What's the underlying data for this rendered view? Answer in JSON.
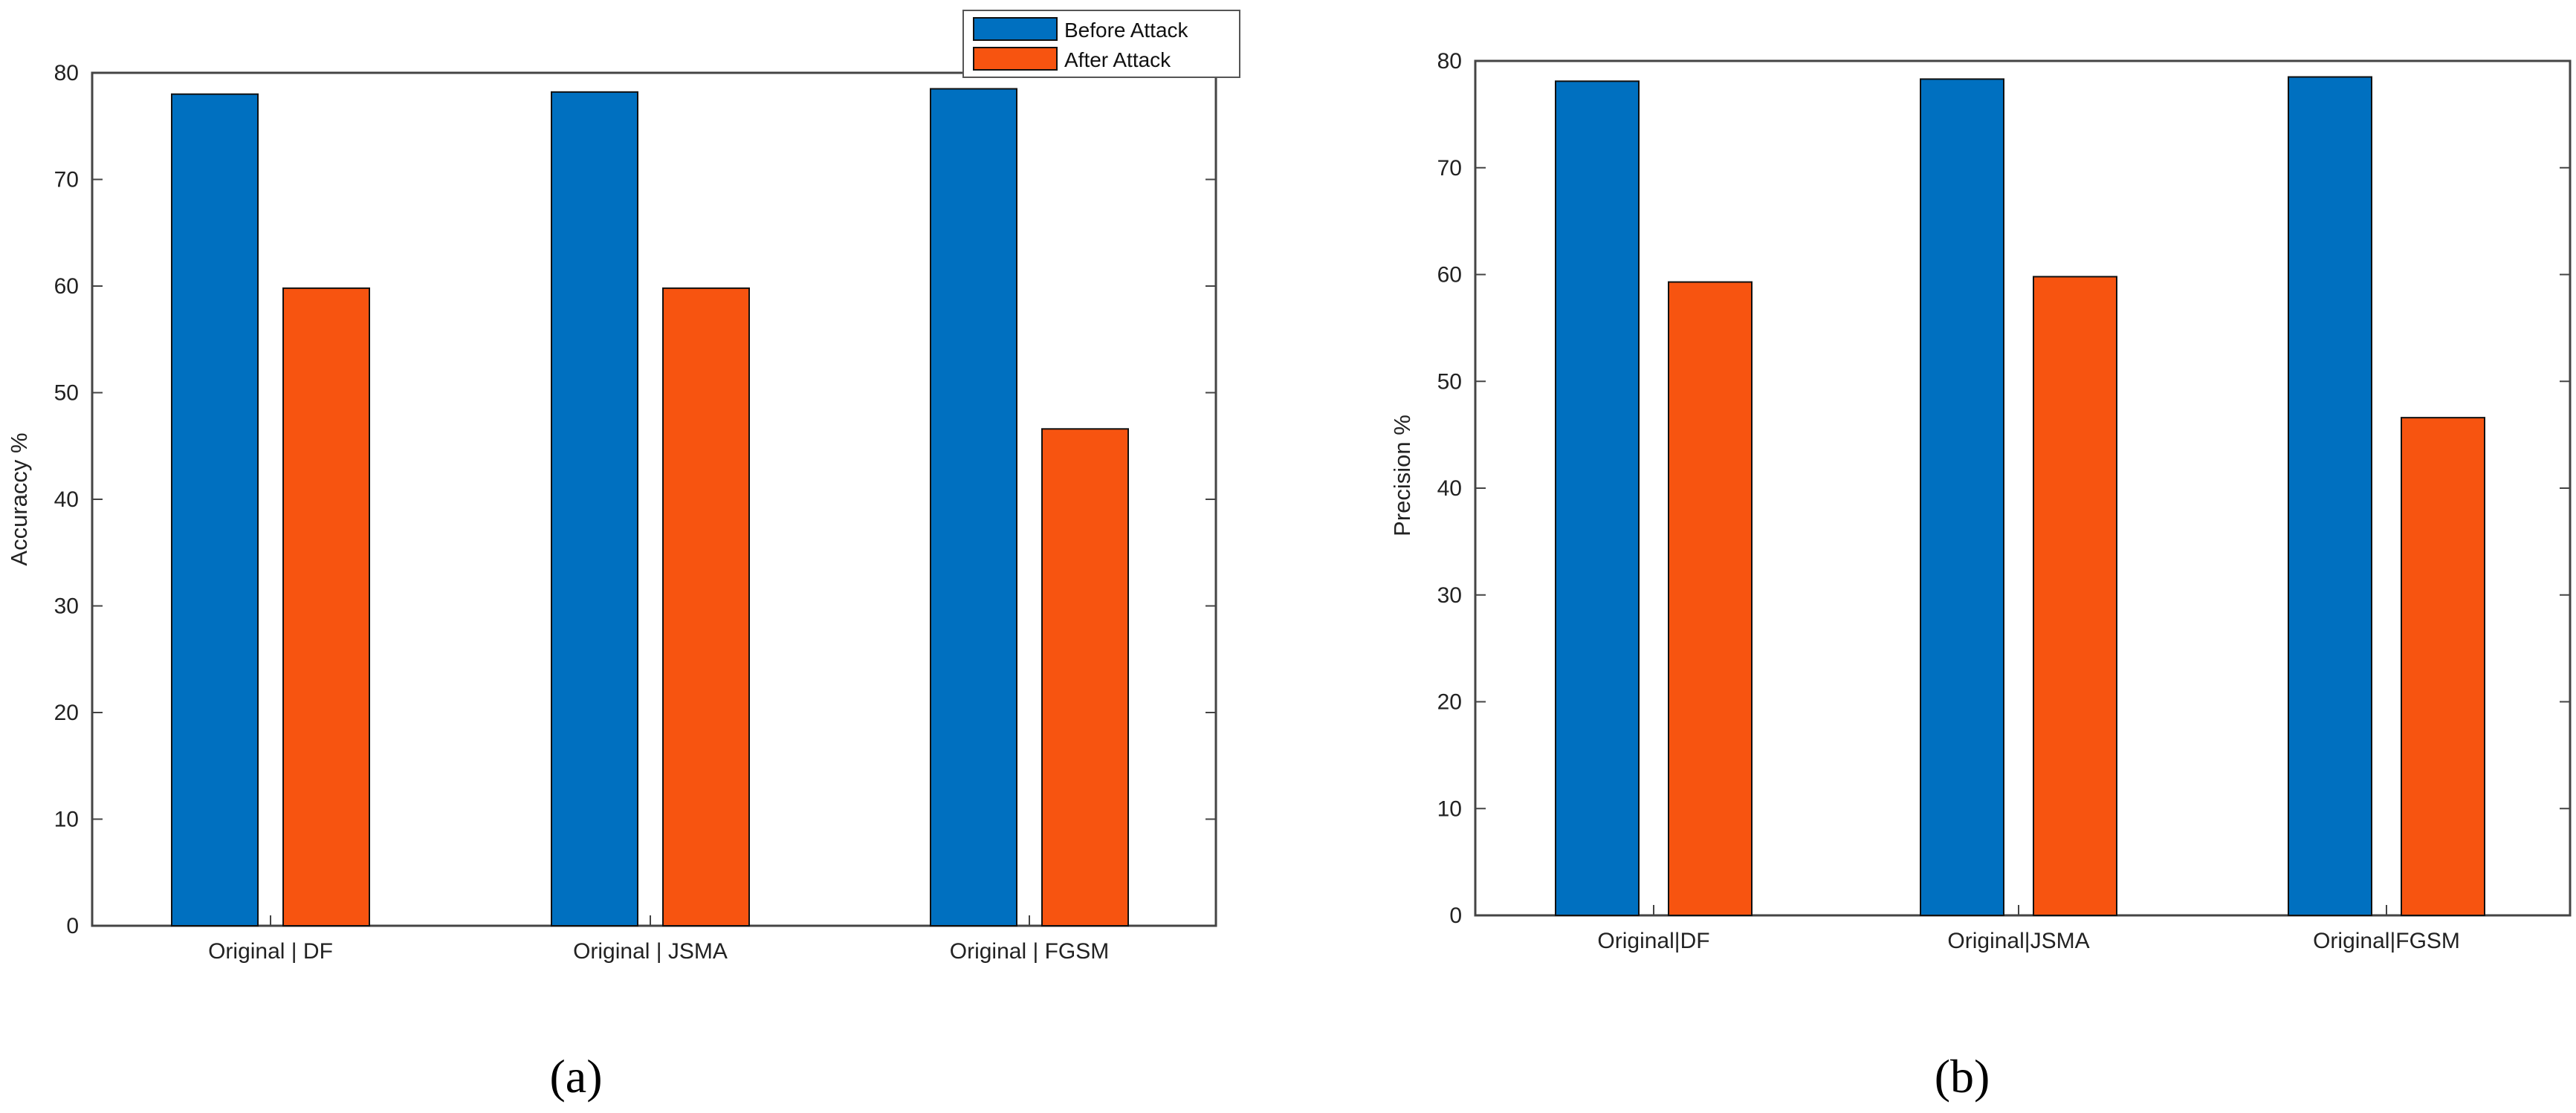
{
  "chart_data": [
    {
      "type": "bar",
      "panel_label": "(a)",
      "categories": [
        "Original | DF",
        "Original | JSMA",
        "Original | FGSM"
      ],
      "series": [
        {
          "name": "Before Attack",
          "values": [
            78,
            78.2,
            78.5
          ]
        },
        {
          "name": "After Attack",
          "values": [
            59.8,
            59.8,
            46.6
          ]
        }
      ],
      "title": "",
      "xlabel": "",
      "ylabel": "Accuraccy %",
      "ylim": [
        0,
        80
      ],
      "yticks": [
        0,
        10,
        20,
        30,
        40,
        50,
        60,
        70,
        80
      ],
      "grid": false,
      "legend": "top-right"
    },
    {
      "type": "bar",
      "panel_label": "(b)",
      "categories": [
        "Original|DF",
        "Original|JSMA",
        "Original|FGSM"
      ],
      "series": [
        {
          "name": "Before Attack",
          "values": [
            78.1,
            78.3,
            78.5
          ]
        },
        {
          "name": "After Attack",
          "values": [
            59.3,
            59.8,
            46.6
          ]
        }
      ],
      "title": "",
      "xlabel": "",
      "ylabel": "Precision %",
      "ylim": [
        0,
        80
      ],
      "yticks": [
        0,
        10,
        20,
        30,
        40,
        50,
        60,
        70,
        80
      ],
      "grid": false,
      "legend": "none"
    }
  ],
  "colors": {
    "before": "#0070c0",
    "after": "#f75410",
    "axis": "#444444"
  }
}
